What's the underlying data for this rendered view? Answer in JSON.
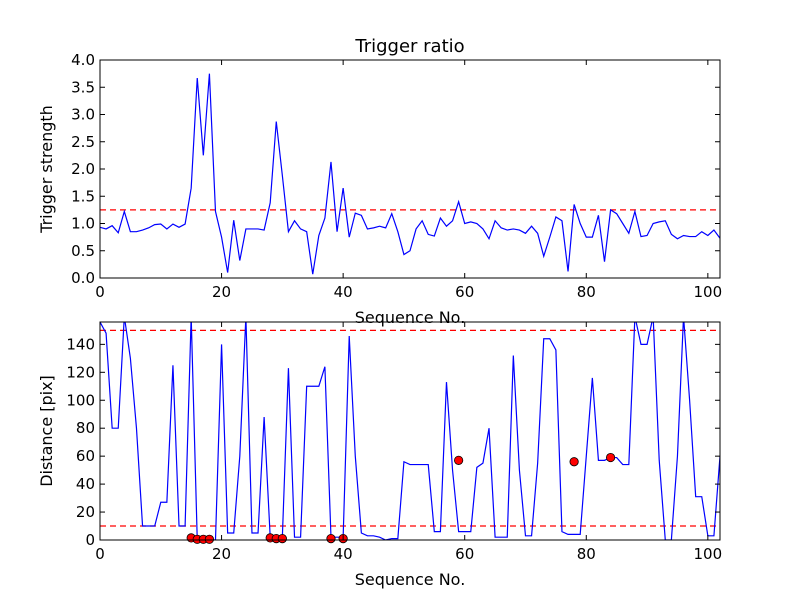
{
  "chart_data": [
    {
      "type": "line",
      "title": "Trigger ratio",
      "xlabel": "Sequence No.",
      "ylabel": "Trigger strength",
      "xlim": [
        0,
        102
      ],
      "ylim": [
        0,
        4
      ],
      "xticks": [
        "0",
        "20",
        "40",
        "60",
        "80",
        "100"
      ],
      "yticks": [
        "0.0",
        "0.5",
        "1.0",
        "1.5",
        "2.0",
        "2.5",
        "3.0",
        "3.5",
        "4.0"
      ],
      "grid": false,
      "series": [
        {
          "color": "#0000ff",
          "x": [
            0,
            1,
            2,
            3,
            4,
            5,
            6,
            7,
            8,
            9,
            10,
            11,
            12,
            13,
            14,
            15,
            16,
            17,
            18,
            19,
            20,
            21,
            22,
            23,
            24,
            25,
            26,
            27,
            28,
            29,
            30,
            31,
            32,
            33,
            34,
            35,
            36,
            37,
            38,
            39,
            40,
            41,
            42,
            43,
            44,
            45,
            46,
            47,
            48,
            49,
            50,
            51,
            52,
            53,
            54,
            55,
            56,
            57,
            58,
            59,
            60,
            61,
            62,
            63,
            64,
            65,
            66,
            67,
            68,
            69,
            70,
            71,
            72,
            73,
            74,
            75,
            76,
            77,
            78,
            79,
            80,
            81,
            82,
            83,
            84,
            85,
            86,
            87,
            88,
            89,
            90,
            91,
            92,
            93,
            94,
            95,
            96,
            97,
            98,
            99,
            100,
            101,
            102
          ],
          "y": [
            0.93,
            0.9,
            0.96,
            0.83,
            1.22,
            0.85,
            0.85,
            0.88,
            0.92,
            0.98,
            0.99,
            0.9,
            0.99,
            0.93,
            0.99,
            1.65,
            3.67,
            2.25,
            3.75,
            1.22,
            0.75,
            0.1,
            1.06,
            0.32,
            0.9,
            0.9,
            0.9,
            0.88,
            1.38,
            2.87,
            1.88,
            0.85,
            1.05,
            0.9,
            0.85,
            0.07,
            0.78,
            1.1,
            2.13,
            0.85,
            1.65,
            0.75,
            1.19,
            1.15,
            0.9,
            0.92,
            0.95,
            0.92,
            1.18,
            0.85,
            0.43,
            0.5,
            0.9,
            1.05,
            0.8,
            0.77,
            1.1,
            0.95,
            1.05,
            1.4,
            1.0,
            1.03,
            1.0,
            0.9,
            0.72,
            1.05,
            0.92,
            0.88,
            0.9,
            0.88,
            0.82,
            0.95,
            0.82,
            0.4,
            0.75,
            1.12,
            1.05,
            0.12,
            1.35,
            1.0,
            0.75,
            0.75,
            1.15,
            0.3,
            1.25,
            1.18,
            1.0,
            0.82,
            1.22,
            0.76,
            0.78,
            1.0,
            1.03,
            1.05,
            0.8,
            0.72,
            0.78,
            0.76,
            0.76,
            0.85,
            0.78,
            0.88,
            0.73
          ]
        }
      ],
      "threshold_lines": [
        {
          "y": 1.25,
          "color": "#ff0000",
          "style": "dashed"
        }
      ]
    },
    {
      "type": "line",
      "title": "",
      "xlabel": "Sequence No.",
      "ylabel": "Distance [pix]",
      "xlim": [
        0,
        102
      ],
      "ylim": [
        0,
        156
      ],
      "xticks": [
        "0",
        "20",
        "40",
        "60",
        "80",
        "100"
      ],
      "yticks": [
        "0",
        "20",
        "40",
        "60",
        "80",
        "100",
        "120",
        "140"
      ],
      "grid": false,
      "series": [
        {
          "color": "#0000ff",
          "x": [
            0,
            1,
            2,
            3,
            4,
            5,
            6,
            7,
            8,
            9,
            10,
            11,
            12,
            13,
            14,
            15,
            16,
            17,
            18,
            19,
            20,
            21,
            22,
            23,
            24,
            25,
            26,
            27,
            28,
            29,
            30,
            31,
            32,
            33,
            34,
            35,
            36,
            37,
            38,
            39,
            40,
            41,
            42,
            43,
            44,
            45,
            46,
            47,
            48,
            49,
            50,
            51,
            52,
            53,
            54,
            55,
            56,
            57,
            58,
            59,
            60,
            61,
            62,
            63,
            64,
            65,
            66,
            67,
            68,
            69,
            70,
            71,
            72,
            73,
            74,
            75,
            76,
            77,
            78,
            79,
            80,
            81,
            82,
            83,
            84,
            85,
            86,
            87,
            88,
            89,
            90,
            91,
            92,
            93,
            94,
            95,
            96,
            97,
            98,
            99,
            100,
            101,
            102
          ],
          "y": [
            156,
            148,
            80,
            80,
            160,
            130,
            80,
            10,
            10,
            10,
            27,
            27,
            125,
            10,
            10,
            160,
            0,
            0,
            0,
            0,
            140,
            5,
            5,
            60,
            160,
            5,
            5,
            88,
            2,
            2,
            2,
            123,
            2,
            2,
            110,
            110,
            110,
            124,
            2,
            2,
            2,
            146,
            60,
            5,
            3,
            3,
            2,
            0,
            1,
            1,
            56,
            54,
            54,
            54,
            54,
            6,
            6,
            113,
            50,
            6,
            6,
            6,
            52,
            55,
            80,
            2,
            2,
            2,
            132,
            50,
            3,
            3,
            55,
            144,
            144,
            136,
            6,
            4,
            4,
            4,
            60,
            116,
            57,
            57,
            59,
            59,
            54,
            54,
            160,
            140,
            140,
            160,
            57,
            0,
            0,
            60,
            160,
            100,
            31,
            31,
            3,
            3,
            60
          ]
        }
      ],
      "threshold_lines": [
        {
          "y": 150,
          "color": "#ff0000",
          "style": "dashed"
        },
        {
          "y": 10,
          "color": "#ff0000",
          "style": "dashed"
        }
      ],
      "markers": {
        "color": "#ff0000",
        "x": [
          15,
          16,
          17,
          18,
          28,
          29,
          30,
          38,
          40,
          59,
          78,
          84
        ],
        "y": [
          1.5,
          0.5,
          0.5,
          0.5,
          1.5,
          1.0,
          1.0,
          1.0,
          1.0,
          57,
          56,
          59
        ]
      }
    }
  ]
}
